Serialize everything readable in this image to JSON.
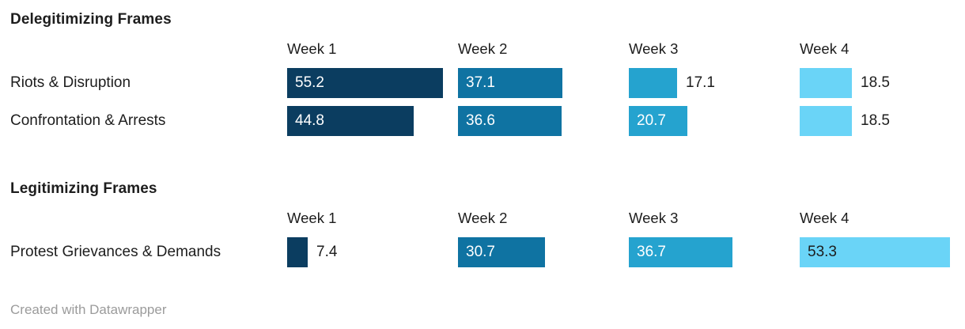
{
  "colors": {
    "text_dark": "#1d1d1d",
    "text_light": "#ffffff",
    "footer_gray": "#9b9b9b",
    "background": "#ffffff"
  },
  "footer": {
    "credit": "Created with Datawrapper"
  },
  "chart_data": {
    "type": "bar",
    "orientation": "horizontal",
    "value_axis_max": 55.2,
    "grid": false,
    "legend": false,
    "columns": [
      "Week 1",
      "Week 2",
      "Week 3",
      "Week 4"
    ],
    "bar_colors": [
      "#0b3d60",
      "#0f73a2",
      "#25a3cf",
      "#6ad4f7"
    ],
    "inside_text_colors": [
      "#ffffff",
      "#ffffff",
      "#ffffff",
      "#1d1d1d"
    ],
    "sections": [
      {
        "title": "Delegitimizing Frames",
        "rows": [
          {
            "label": "Riots & Disruption",
            "values": [
              55.2,
              37.1,
              17.1,
              18.5
            ],
            "label_inside": [
              true,
              true,
              false,
              false
            ]
          },
          {
            "label": "Confrontation & Arrests",
            "values": [
              44.8,
              36.6,
              20.7,
              18.5
            ],
            "label_inside": [
              true,
              true,
              true,
              false
            ]
          }
        ]
      },
      {
        "title": "Legitimizing Frames",
        "rows": [
          {
            "label": "Protest Grievances & Demands",
            "values": [
              7.4,
              30.7,
              36.7,
              53.3
            ],
            "label_inside": [
              false,
              true,
              true,
              true
            ]
          }
        ]
      }
    ]
  }
}
